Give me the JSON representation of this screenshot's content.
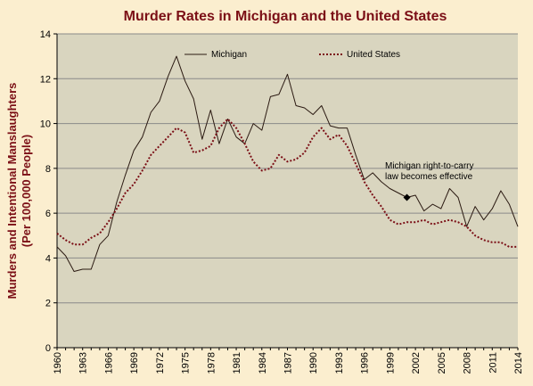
{
  "chart_data": {
    "type": "line",
    "title": "Murder Rates in Michigan and the United States",
    "ylabel": "Murders and Intentional Manslaughters",
    "ylabel_sub": "(Per 100,000 People)",
    "xlabel": "",
    "xlim": [
      1960,
      2014
    ],
    "ylim": [
      0,
      14
    ],
    "yticks": [
      0,
      2,
      4,
      6,
      8,
      10,
      12,
      14
    ],
    "xticks": [
      1960,
      1963,
      1966,
      1969,
      1972,
      1975,
      1978,
      1981,
      1984,
      1987,
      1990,
      1993,
      1996,
      1999,
      2002,
      2005,
      2008,
      2011,
      2014
    ],
    "grid": true,
    "legend_position": "top",
    "background_color": "#d9d5bf",
    "page_color": "#fbeecf",
    "title_color": "#7b0f16",
    "series": [
      {
        "name": "Michigan",
        "color": "#2b1a12",
        "style": "solid",
        "x": [
          1960,
          1961,
          1962,
          1963,
          1964,
          1965,
          1966,
          1967,
          1968,
          1969,
          1970,
          1971,
          1972,
          1973,
          1974,
          1975,
          1976,
          1977,
          1978,
          1979,
          1980,
          1981,
          1982,
          1983,
          1984,
          1985,
          1986,
          1987,
          1988,
          1989,
          1990,
          1991,
          1992,
          1993,
          1994,
          1995,
          1996,
          1997,
          1998,
          1999,
          2000,
          2001,
          2002,
          2003,
          2004,
          2005,
          2006,
          2007,
          2008,
          2009,
          2010,
          2011,
          2012,
          2013,
          2014
        ],
        "values": [
          4.5,
          4.1,
          3.4,
          3.5,
          3.5,
          4.6,
          5.0,
          6.5,
          7.7,
          8.8,
          9.4,
          10.5,
          11.0,
          12.1,
          13.0,
          11.9,
          11.1,
          9.3,
          10.6,
          9.1,
          10.2,
          9.4,
          9.1,
          10.0,
          9.7,
          11.2,
          11.3,
          12.2,
          10.8,
          10.7,
          10.4,
          10.8,
          9.9,
          9.8,
          9.8,
          8.6,
          7.5,
          7.8,
          7.4,
          7.1,
          6.9,
          6.7,
          6.8,
          6.1,
          6.4,
          6.2,
          7.1,
          6.7,
          5.4,
          6.3,
          5.7,
          6.2,
          7.0,
          6.4,
          5.4
        ]
      },
      {
        "name": "United States",
        "color": "#7b0f16",
        "style": "dotted",
        "x": [
          1960,
          1961,
          1962,
          1963,
          1964,
          1965,
          1966,
          1967,
          1968,
          1969,
          1970,
          1971,
          1972,
          1973,
          1974,
          1975,
          1976,
          1977,
          1978,
          1979,
          1980,
          1981,
          1982,
          1983,
          1984,
          1985,
          1986,
          1987,
          1988,
          1989,
          1990,
          1991,
          1992,
          1993,
          1994,
          1995,
          1996,
          1997,
          1998,
          1999,
          2000,
          2001,
          2002,
          2003,
          2004,
          2005,
          2006,
          2007,
          2008,
          2009,
          2010,
          2011,
          2012,
          2013,
          2014
        ],
        "values": [
          5.1,
          4.8,
          4.6,
          4.6,
          4.9,
          5.1,
          5.6,
          6.2,
          6.9,
          7.3,
          7.9,
          8.6,
          9.0,
          9.4,
          9.8,
          9.6,
          8.7,
          8.8,
          9.0,
          9.8,
          10.2,
          9.8,
          9.1,
          8.3,
          7.9,
          8.0,
          8.6,
          8.3,
          8.4,
          8.7,
          9.4,
          9.8,
          9.3,
          9.5,
          9.0,
          8.2,
          7.4,
          6.8,
          6.3,
          5.7,
          5.5,
          5.6,
          5.6,
          5.7,
          5.5,
          5.6,
          5.7,
          5.6,
          5.4,
          5.0,
          4.8,
          4.7,
          4.7,
          4.5,
          4.5
        ]
      }
    ],
    "annotations": [
      {
        "text_line1": "Michigan right-to-carry",
        "text_line2": "law becomes effective",
        "x": 2001,
        "y": 6.7,
        "marker": "diamond"
      }
    ]
  }
}
